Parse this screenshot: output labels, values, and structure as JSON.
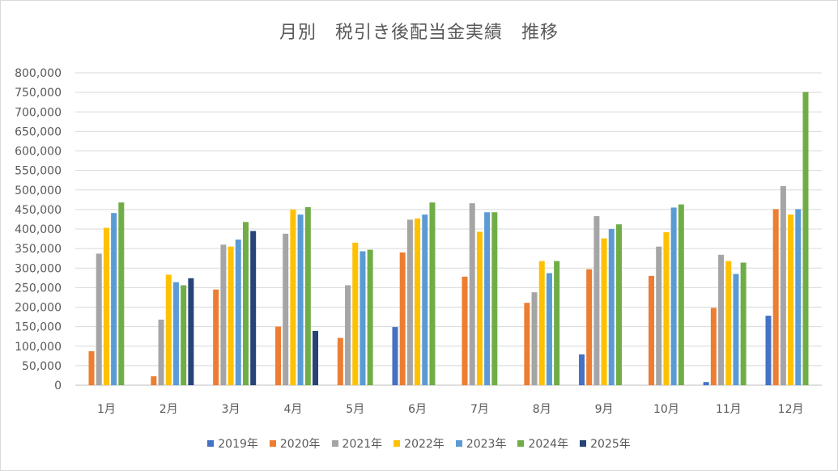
{
  "chart_data": {
    "type": "bar",
    "title": "月別　税引き後配当金実績　推移",
    "xlabel": "",
    "ylabel": "",
    "categories": [
      "1月",
      "2月",
      "3月",
      "4月",
      "5月",
      "6月",
      "7月",
      "8月",
      "9月",
      "10月",
      "11月",
      "12月"
    ],
    "ylim": [
      0,
      800000
    ],
    "yticks": [
      "0",
      "50,000",
      "100,000",
      "150,000",
      "200,000",
      "250,000",
      "300,000",
      "350,000",
      "400,000",
      "450,000",
      "500,000",
      "550,000",
      "600,000",
      "650,000",
      "700,000",
      "750,000",
      "800,000"
    ],
    "grid": true,
    "legend_position": "bottom",
    "series": [
      {
        "name": "2019年",
        "color": "#4472c4",
        "values": [
          0,
          0,
          0,
          0,
          0,
          149000,
          0,
          0,
          79000,
          0,
          8000,
          178000
        ]
      },
      {
        "name": "2020年",
        "color": "#ed7d31",
        "values": [
          87000,
          23000,
          245000,
          150000,
          121000,
          340000,
          278000,
          211000,
          297000,
          280000,
          198000,
          451000
        ]
      },
      {
        "name": "2021年",
        "color": "#a5a5a5",
        "values": [
          337000,
          168000,
          360000,
          388000,
          256000,
          424000,
          466000,
          238000,
          433000,
          355000,
          334000,
          510000
        ]
      },
      {
        "name": "2022年",
        "color": "#ffc000",
        "values": [
          403000,
          283000,
          355000,
          450000,
          365000,
          427000,
          393000,
          318000,
          376000,
          392000,
          318000,
          437000
        ]
      },
      {
        "name": "2023年",
        "color": "#5b9bd5",
        "values": [
          441000,
          264000,
          373000,
          437000,
          343000,
          437000,
          443000,
          287000,
          400000,
          455000,
          285000,
          451000
        ]
      },
      {
        "name": "2024年",
        "color": "#70ad47",
        "values": [
          468000,
          256000,
          418000,
          456000,
          347000,
          468000,
          443000,
          318000,
          412000,
          463000,
          314000,
          751000
        ]
      },
      {
        "name": "2025年",
        "color": "#264478",
        "values": [
          0,
          274000,
          395000,
          139000,
          0,
          0,
          0,
          0,
          0,
          0,
          0,
          0
        ]
      }
    ]
  }
}
